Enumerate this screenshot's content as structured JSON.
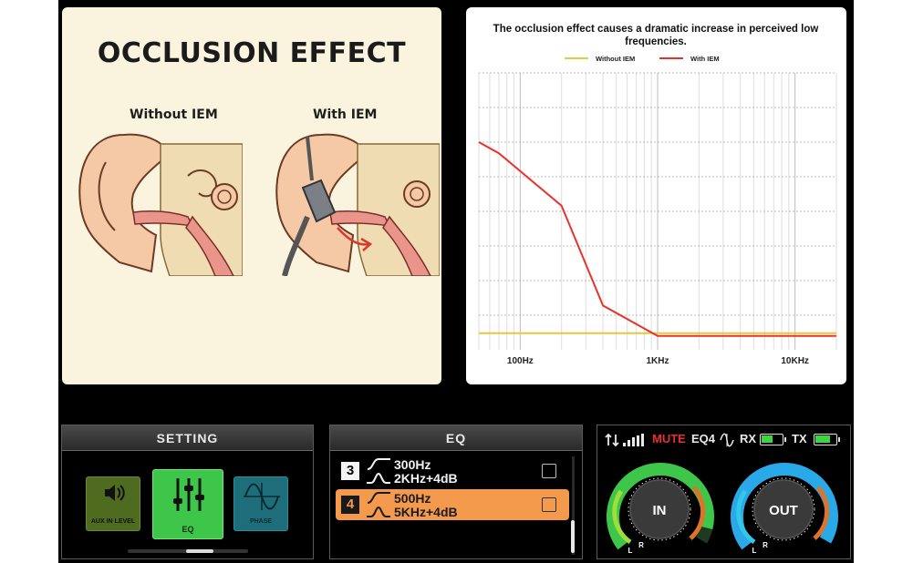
{
  "illustration": {
    "title": "OCCLUSION EFFECT",
    "caption_left": "Without IEM",
    "caption_right": "With IEM"
  },
  "chart_data": {
    "type": "line",
    "title": "The occlusion effect causes a dramatic increase in perceived low frequencies.",
    "xscale": "log",
    "x_tick_labels": [
      "100Hz",
      "1KHz",
      "10KHz"
    ],
    "x_ticks": [
      100,
      1000,
      10000
    ],
    "xlim": [
      50,
      20000
    ],
    "ylim": [
      0,
      10
    ],
    "y_tick_labels": [],
    "grid": true,
    "legend_position": "top-center",
    "series": [
      {
        "name": "Without IEM",
        "color": "#e9c63a",
        "x": [
          50,
          20000
        ],
        "y": [
          0.6,
          0.6
        ]
      },
      {
        "name": "With IEM",
        "color": "#e8332c",
        "x": [
          50,
          70,
          200,
          400,
          1000,
          20000
        ],
        "y": [
          7.5,
          7.1,
          5.2,
          1.6,
          0.5,
          0.5
        ]
      }
    ]
  },
  "setting": {
    "title": "SETTING",
    "tiles": [
      {
        "label": "AUX IN LEVEL",
        "icon": "speaker-icon"
      },
      {
        "label": "EQ",
        "icon": "sliders-icon",
        "selected": true
      },
      {
        "label": "PHASE",
        "icon": "sine-wave-icon"
      }
    ]
  },
  "eq": {
    "title": "EQ",
    "bands": [
      {
        "number": "3",
        "line1": "300Hz",
        "line2": "2KHz+4dB",
        "checked": false,
        "highlighted": false
      },
      {
        "number": "4",
        "line1": "500Hz",
        "line2": "5KHz+4dB",
        "checked": false,
        "highlighted": true
      }
    ]
  },
  "status": {
    "mute": "MUTE",
    "eq": "EQ4",
    "rx": "RX",
    "tx": "TX",
    "rx_battery_level": 0.55,
    "tx_battery_level": 0.75,
    "colors": {
      "mute": "#e63030",
      "battery": "#3ed63e",
      "in_ring": "#3ec64a",
      "out_ring": "#2aa9e8"
    },
    "meters": [
      {
        "label": "IN",
        "left": "L",
        "right": "R"
      },
      {
        "label": "OUT",
        "left": "L",
        "right": "R"
      }
    ]
  }
}
